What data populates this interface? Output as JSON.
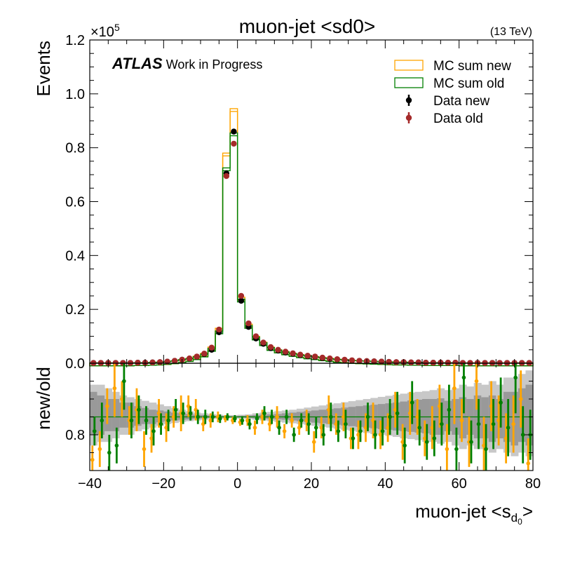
{
  "chart_data": {
    "type": "histogram-with-ratio",
    "title": "muon-jet <sd0>",
    "energy_label": "(13 TeV)",
    "experiment_label": "ATLAS",
    "status_label": "Work in Progress",
    "xlabel_main": "muon-jet <s",
    "xlabel_sub": "d",
    "xlabel_subsub": "0",
    "xlabel_end": ">",
    "ylabel": "Events",
    "ratio_ylabel": "new/old",
    "y_multiplier_base": "×10",
    "y_multiplier_exp": "5",
    "xlim": [
      -40,
      80
    ],
    "ylim": [
      0,
      1.2
    ],
    "ratio_ylim": [
      0.7,
      1.0
    ],
    "x_ticks": [
      "−40",
      "−20",
      "0",
      "20",
      "40",
      "60",
      "80"
    ],
    "x_tick_values": [
      -40,
      -20,
      0,
      20,
      40,
      60,
      80
    ],
    "y_ticks": [
      "0.0",
      "0.2",
      "0.4",
      "0.6",
      "0.8",
      "1.0",
      "1.2"
    ],
    "y_tick_values": [
      0,
      0.2,
      0.4,
      0.6,
      0.8,
      1.0,
      1.2
    ],
    "ratio_y_ticks": [
      "0.8"
    ],
    "ratio_y_tick_values": [
      0.8
    ],
    "legend": [
      {
        "label": "MC sum new",
        "kind": "box",
        "color": "#ffa500"
      },
      {
        "label": "MC sum old",
        "kind": "box",
        "color": "#008000"
      },
      {
        "label": "Data new",
        "kind": "marker",
        "color": "#000000"
      },
      {
        "label": "Data old",
        "kind": "marker",
        "color": "#a52a2a"
      }
    ],
    "colors": {
      "mc_new": "#ffa500",
      "mc_old": "#008000",
      "data_new": "#000000",
      "data_old": "#a52a2a",
      "band_dark": "#999999",
      "band_light": "#c8c8c8"
    },
    "bin_edges_start": -40,
    "bin_width": 2,
    "mc_new": [
      0.001,
      0.001,
      0.001,
      0.001,
      0.001,
      0.001,
      0.002,
      0.002,
      0.003,
      0.004,
      0.006,
      0.009,
      0.013,
      0.018,
      0.026,
      0.037,
      0.06,
      0.13,
      0.78,
      0.945,
      0.245,
      0.145,
      0.1,
      0.078,
      0.06,
      0.05,
      0.043,
      0.037,
      0.032,
      0.028,
      0.025,
      0.021,
      0.018,
      0.015,
      0.013,
      0.011,
      0.009,
      0.008,
      0.007,
      0.006,
      0.005,
      0.004,
      0.004,
      0.003,
      0.003,
      0.002,
      0.002,
      0.002,
      0.002,
      0.002,
      0.001,
      0.001,
      0.001,
      0.001,
      0.001,
      0.001,
      0.001,
      0.001,
      0.001,
      0.001
    ],
    "mc_old": [
      0.001,
      0.001,
      0.001,
      0.001,
      0.001,
      0.001,
      0.002,
      0.002,
      0.003,
      0.004,
      0.006,
      0.009,
      0.013,
      0.017,
      0.024,
      0.034,
      0.055,
      0.12,
      0.725,
      0.855,
      0.238,
      0.14,
      0.097,
      0.076,
      0.058,
      0.049,
      0.042,
      0.036,
      0.031,
      0.027,
      0.024,
      0.02,
      0.017,
      0.014,
      0.012,
      0.01,
      0.009,
      0.008,
      0.007,
      0.006,
      0.005,
      0.004,
      0.004,
      0.003,
      0.003,
      0.002,
      0.002,
      0.002,
      0.002,
      0.002,
      0.001,
      0.001,
      0.001,
      0.001,
      0.001,
      0.001,
      0.001,
      0.001,
      0.001,
      0.001
    ],
    "data_new": [
      0.001,
      0.001,
      0.001,
      0.001,
      0.001,
      0.001,
      0.002,
      0.002,
      0.003,
      0.004,
      0.006,
      0.009,
      0.013,
      0.017,
      0.024,
      0.034,
      0.05,
      0.115,
      0.705,
      0.86,
      0.232,
      0.135,
      0.092,
      0.072,
      0.056,
      0.047,
      0.04,
      0.035,
      0.03,
      0.026,
      0.023,
      0.019,
      0.016,
      0.014,
      0.012,
      0.01,
      0.009,
      0.008,
      0.007,
      0.006,
      0.005,
      0.004,
      0.004,
      0.003,
      0.003,
      0.002,
      0.002,
      0.002,
      0.002,
      0.002,
      0.001,
      0.001,
      0.001,
      0.001,
      0.001,
      0.001,
      0.001,
      0.001,
      0.001,
      0.001
    ],
    "data_old": [
      0.001,
      0.001,
      0.001,
      0.001,
      0.001,
      0.001,
      0.002,
      0.002,
      0.003,
      0.004,
      0.006,
      0.009,
      0.013,
      0.018,
      0.025,
      0.036,
      0.058,
      0.125,
      0.695,
      0.815,
      0.25,
      0.148,
      0.1,
      0.077,
      0.06,
      0.05,
      0.043,
      0.037,
      0.032,
      0.028,
      0.025,
      0.021,
      0.018,
      0.015,
      0.013,
      0.011,
      0.009,
      0.008,
      0.007,
      0.006,
      0.005,
      0.004,
      0.004,
      0.003,
      0.003,
      0.002,
      0.002,
      0.002,
      0.002,
      0.002,
      0.001,
      0.001,
      0.001,
      0.001,
      0.001,
      0.001,
      0.001,
      0.001,
      0.001,
      0.001
    ],
    "ratio_reference": 0.85,
    "ratio_band_dark": [
      [
        0.8,
        0.92
      ],
      [
        0.8,
        0.91
      ],
      [
        0.81,
        0.9
      ],
      [
        0.81,
        0.9
      ],
      [
        0.82,
        0.89
      ],
      [
        0.82,
        0.89
      ],
      [
        0.825,
        0.88
      ],
      [
        0.83,
        0.875
      ],
      [
        0.83,
        0.87
      ],
      [
        0.835,
        0.868
      ],
      [
        0.838,
        0.865
      ],
      [
        0.84,
        0.862
      ],
      [
        0.842,
        0.86
      ],
      [
        0.843,
        0.858
      ],
      [
        0.845,
        0.856
      ],
      [
        0.846,
        0.855
      ],
      [
        0.847,
        0.854
      ],
      [
        0.848,
        0.853
      ],
      [
        0.848,
        0.852
      ],
      [
        0.848,
        0.852
      ],
      [
        0.848,
        0.853
      ],
      [
        0.847,
        0.854
      ],
      [
        0.846,
        0.855
      ],
      [
        0.845,
        0.856
      ],
      [
        0.844,
        0.857
      ],
      [
        0.843,
        0.858
      ],
      [
        0.842,
        0.86
      ],
      [
        0.84,
        0.862
      ],
      [
        0.838,
        0.864
      ],
      [
        0.836,
        0.866
      ],
      [
        0.834,
        0.868
      ],
      [
        0.832,
        0.87
      ],
      [
        0.83,
        0.872
      ],
      [
        0.828,
        0.874
      ],
      [
        0.826,
        0.876
      ],
      [
        0.824,
        0.878
      ],
      [
        0.822,
        0.88
      ],
      [
        0.82,
        0.882
      ],
      [
        0.818,
        0.884
      ],
      [
        0.816,
        0.886
      ],
      [
        0.814,
        0.888
      ],
      [
        0.812,
        0.89
      ],
      [
        0.81,
        0.893
      ],
      [
        0.808,
        0.896
      ],
      [
        0.806,
        0.898
      ],
      [
        0.804,
        0.9
      ],
      [
        0.8,
        0.9
      ],
      [
        0.8,
        0.902
      ],
      [
        0.81,
        0.895
      ],
      [
        0.8,
        0.9
      ],
      [
        0.79,
        0.905
      ],
      [
        0.8,
        0.9
      ],
      [
        0.79,
        0.91
      ],
      [
        0.79,
        0.905
      ],
      [
        0.78,
        0.91
      ],
      [
        0.79,
        0.9
      ],
      [
        0.78,
        0.92
      ],
      [
        0.77,
        0.92
      ],
      [
        0.78,
        0.93
      ],
      [
        0.77,
        0.94
      ]
    ],
    "ratio_band_light": [
      [
        0.77,
        0.94
      ],
      [
        0.78,
        0.94
      ],
      [
        0.78,
        0.93
      ],
      [
        0.79,
        0.92
      ],
      [
        0.8,
        0.91
      ],
      [
        0.8,
        0.905
      ],
      [
        0.81,
        0.9
      ],
      [
        0.815,
        0.895
      ],
      [
        0.82,
        0.89
      ],
      [
        0.825,
        0.885
      ],
      [
        0.83,
        0.88
      ],
      [
        0.833,
        0.875
      ],
      [
        0.836,
        0.87
      ],
      [
        0.838,
        0.866
      ],
      [
        0.84,
        0.862
      ],
      [
        0.842,
        0.86
      ],
      [
        0.844,
        0.858
      ],
      [
        0.845,
        0.856
      ],
      [
        0.846,
        0.855
      ],
      [
        0.846,
        0.855
      ],
      [
        0.845,
        0.856
      ],
      [
        0.844,
        0.857
      ],
      [
        0.842,
        0.86
      ],
      [
        0.84,
        0.862
      ],
      [
        0.838,
        0.864
      ],
      [
        0.836,
        0.866
      ],
      [
        0.834,
        0.868
      ],
      [
        0.832,
        0.87
      ],
      [
        0.83,
        0.873
      ],
      [
        0.828,
        0.876
      ],
      [
        0.825,
        0.879
      ],
      [
        0.822,
        0.882
      ],
      [
        0.82,
        0.885
      ],
      [
        0.817,
        0.888
      ],
      [
        0.814,
        0.891
      ],
      [
        0.811,
        0.894
      ],
      [
        0.808,
        0.897
      ],
      [
        0.805,
        0.9
      ],
      [
        0.802,
        0.903
      ],
      [
        0.8,
        0.906
      ],
      [
        0.797,
        0.909
      ],
      [
        0.794,
        0.912
      ],
      [
        0.79,
        0.915
      ],
      [
        0.788,
        0.918
      ],
      [
        0.785,
        0.92
      ],
      [
        0.78,
        0.922
      ],
      [
        0.78,
        0.925
      ],
      [
        0.775,
        0.93
      ],
      [
        0.78,
        0.925
      ],
      [
        0.77,
        0.93
      ],
      [
        0.76,
        0.94
      ],
      [
        0.77,
        0.935
      ],
      [
        0.76,
        0.945
      ],
      [
        0.76,
        0.94
      ],
      [
        0.75,
        0.95
      ],
      [
        0.76,
        0.94
      ],
      [
        0.75,
        0.96
      ],
      [
        0.74,
        0.96
      ],
      [
        0.75,
        0.97
      ],
      [
        0.74,
        0.98
      ]
    ],
    "ratio_new": [
      [
        0.73,
        0.04
      ],
      [
        0.76,
        0.05
      ],
      [
        0.88,
        0.05
      ],
      [
        0.93,
        0.08
      ],
      [
        0.9,
        0.05
      ],
      [
        0.84,
        0.04
      ],
      [
        0.87,
        0.06
      ],
      [
        0.76,
        0.05
      ],
      [
        0.79,
        0.04
      ],
      [
        0.86,
        0.04
      ],
      [
        0.82,
        0.04
      ],
      [
        0.85,
        0.03
      ],
      [
        0.86,
        0.05
      ],
      [
        0.88,
        0.03
      ],
      [
        0.87,
        0.03
      ],
      [
        0.83,
        0.02
      ],
      [
        0.84,
        0.02
      ],
      [
        0.85,
        0.015
      ],
      [
        0.845,
        0.01
      ],
      [
        0.84,
        0.01
      ],
      [
        0.835,
        0.01
      ],
      [
        0.84,
        0.015
      ],
      [
        0.82,
        0.02
      ],
      [
        0.85,
        0.02
      ],
      [
        0.83,
        0.02
      ],
      [
        0.85,
        0.03
      ],
      [
        0.81,
        0.02
      ],
      [
        0.84,
        0.02
      ],
      [
        0.82,
        0.02
      ],
      [
        0.84,
        0.03
      ],
      [
        0.78,
        0.03
      ],
      [
        0.82,
        0.03
      ],
      [
        0.87,
        0.04
      ],
      [
        0.83,
        0.03
      ],
      [
        0.85,
        0.04
      ],
      [
        0.79,
        0.03
      ],
      [
        0.8,
        0.04
      ],
      [
        0.82,
        0.04
      ],
      [
        0.84,
        0.05
      ],
      [
        0.8,
        0.04
      ],
      [
        0.82,
        0.04
      ],
      [
        0.87,
        0.05
      ],
      [
        0.78,
        0.05
      ],
      [
        0.86,
        0.06
      ],
      [
        0.85,
        0.05
      ],
      [
        0.79,
        0.05
      ],
      [
        0.82,
        0.06
      ],
      [
        0.88,
        0.06
      ],
      [
        0.76,
        0.07
      ],
      [
        0.93,
        0.1
      ],
      [
        0.84,
        0.06
      ],
      [
        0.78,
        0.07
      ],
      [
        0.95,
        0.08
      ],
      [
        0.77,
        0.08
      ],
      [
        0.88,
        0.07
      ],
      [
        0.84,
        0.07
      ],
      [
        0.79,
        0.07
      ],
      [
        0.83,
        0.08
      ],
      [
        0.9,
        0.08
      ],
      [
        0.72,
        0.07
      ]
    ],
    "ratio_old": [
      [
        0.81,
        0.04
      ],
      [
        0.84,
        0.05
      ],
      [
        0.75,
        0.05
      ],
      [
        0.77,
        0.05
      ],
      [
        0.95,
        0.08
      ],
      [
        0.84,
        0.05
      ],
      [
        0.87,
        0.04
      ],
      [
        0.84,
        0.04
      ],
      [
        0.81,
        0.04
      ],
      [
        0.83,
        0.03
      ],
      [
        0.84,
        0.03
      ],
      [
        0.87,
        0.03
      ],
      [
        0.86,
        0.03
      ],
      [
        0.86,
        0.02
      ],
      [
        0.85,
        0.02
      ],
      [
        0.85,
        0.02
      ],
      [
        0.85,
        0.015
      ],
      [
        0.845,
        0.012
      ],
      [
        0.85,
        0.01
      ],
      [
        0.845,
        0.01
      ],
      [
        0.84,
        0.012
      ],
      [
        0.83,
        0.015
      ],
      [
        0.845,
        0.015
      ],
      [
        0.86,
        0.02
      ],
      [
        0.85,
        0.02
      ],
      [
        0.82,
        0.02
      ],
      [
        0.85,
        0.02
      ],
      [
        0.8,
        0.02
      ],
      [
        0.84,
        0.02
      ],
      [
        0.83,
        0.03
      ],
      [
        0.82,
        0.03
      ],
      [
        0.8,
        0.03
      ],
      [
        0.85,
        0.04
      ],
      [
        0.81,
        0.03
      ],
      [
        0.83,
        0.04
      ],
      [
        0.79,
        0.03
      ],
      [
        0.81,
        0.03
      ],
      [
        0.85,
        0.04
      ],
      [
        0.8,
        0.04
      ],
      [
        0.81,
        0.04
      ],
      [
        0.85,
        0.05
      ],
      [
        0.86,
        0.06
      ],
      [
        0.77,
        0.05
      ],
      [
        0.89,
        0.06
      ],
      [
        0.82,
        0.05
      ],
      [
        0.78,
        0.05
      ],
      [
        0.79,
        0.05
      ],
      [
        0.83,
        0.06
      ],
      [
        0.87,
        0.07
      ],
      [
        0.76,
        0.06
      ],
      [
        0.96,
        0.1
      ],
      [
        0.78,
        0.06
      ],
      [
        0.83,
        0.07
      ],
      [
        0.76,
        0.07
      ],
      [
        0.83,
        0.07
      ],
      [
        0.89,
        0.07
      ],
      [
        0.82,
        0.08
      ],
      [
        0.96,
        0.1
      ],
      [
        0.8,
        0.08
      ],
      [
        0.8,
        0.07
      ]
    ]
  }
}
